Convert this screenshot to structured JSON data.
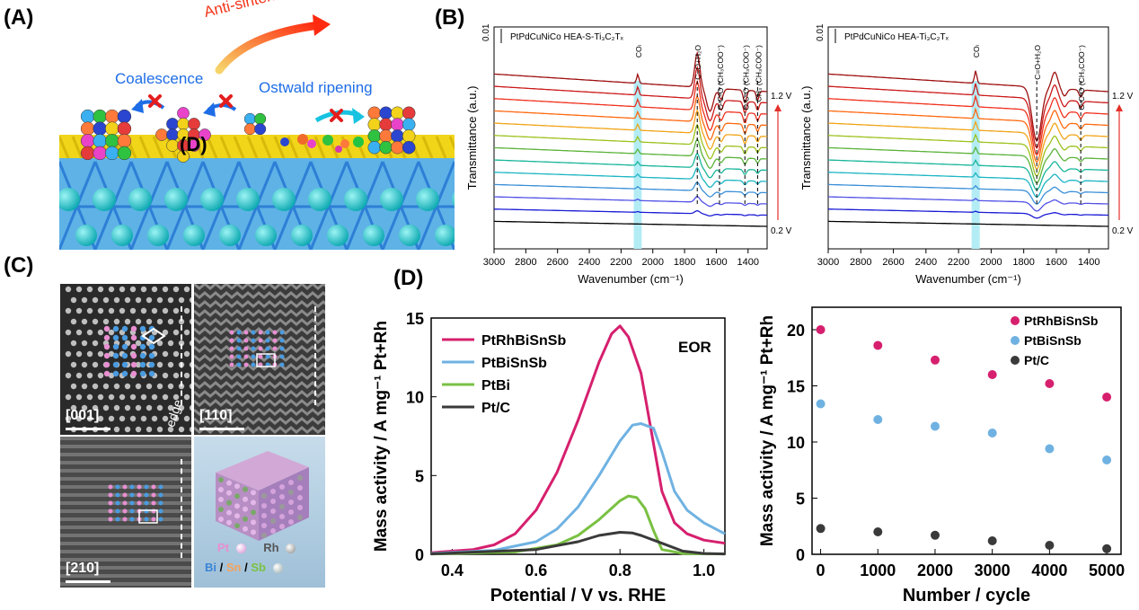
{
  "panels": {
    "a": "(A)",
    "b": "(B)",
    "c": "(C)",
    "d": "(D)"
  },
  "scene_a": {
    "arrow_title": "Anti-sintering",
    "left_label": "Coalescence",
    "right_label": "Ostwald ripening",
    "overlay": "(D)"
  },
  "micrographs": {
    "labels": [
      "[001]",
      "[110]",
      "[210]"
    ],
    "edge_label": "edge",
    "model_legend": {
      "pt": "Pt",
      "rh": "Rh",
      "bi": "Bi",
      "sn": "Sn",
      "sb": "Sb",
      "sep": "/"
    }
  },
  "colors": {
    "magenta": "#d6206e",
    "lightblue": "#6fb2e2",
    "green": "#7ac143",
    "darkgray": "#3a3a3a",
    "highlight": "#b3ecf5"
  },
  "chart_data": [
    {
      "type": "line",
      "panel": "B-left",
      "title": "PtPdCuNiCo HEA-S-Ti₃C₂Tₓ",
      "xlabel": "Wavenumber (cm⁻¹)",
      "ylabel": "Transmittance (a.u.)",
      "xlim": [
        3000,
        1280
      ],
      "x_ticks": [
        3000,
        2800,
        2600,
        2400,
        2200,
        2000,
        1800,
        1600,
        1400
      ],
      "scale_label": "0.01",
      "potential_top": "1.2 V",
      "potential_bottom": "0.2 V",
      "highlight_band": [
        2120,
        2070
      ],
      "band_labels": [
        {
          "x": 2095,
          "label": "COₗ"
        },
        {
          "x": 1720,
          "label": "C=O+H₂O"
        },
        {
          "x": 1580,
          "label": "O-C-O (CH₃COO⁻)"
        },
        {
          "x": 1420,
          "label": "O-C-O (CH₃COO⁻)"
        },
        {
          "x": 1340,
          "label": "CH₃ (CH₃COO⁻)"
        }
      ],
      "series_colors": [
        "#000000",
        "#1b1bd6",
        "#5151e6",
        "#3a8fd8",
        "#1cb5c4",
        "#18b59a",
        "#5bb33a",
        "#9cc21e",
        "#f2a419",
        "#ff6a12",
        "#f0321e",
        "#cc1a1a",
        "#9e1010"
      ]
    },
    {
      "type": "line",
      "panel": "B-right",
      "title": "PtPdCuNiCo HEA-Ti₃C₂Tₓ",
      "xlabel": "Wavenumber (cm⁻¹)",
      "ylabel": "Transmittance (a.u.)",
      "xlim": [
        3000,
        1280
      ],
      "x_ticks": [
        3000,
        2800,
        2600,
        2400,
        2200,
        2000,
        1800,
        1600,
        1400
      ],
      "scale_label": "0.01",
      "potential_top": "1.2 V",
      "potential_bottom": "0.2 V",
      "highlight_band": [
        2120,
        2070
      ],
      "band_labels": [
        {
          "x": 2095,
          "label": "COₗ"
        },
        {
          "x": 1720,
          "label": "C=O+H₂O"
        },
        {
          "x": 1450,
          "label": "O-C-O (CH₃COO⁻)"
        }
      ],
      "series_colors": [
        "#000000",
        "#1b1bd6",
        "#5151e6",
        "#3a8fd8",
        "#1cb5c4",
        "#18b59a",
        "#5bb33a",
        "#9cc21e",
        "#f2a419",
        "#ff6a12",
        "#f0321e",
        "#cc1a1a",
        "#9e1010"
      ]
    },
    {
      "type": "line",
      "panel": "D-left",
      "xlabel": "Potential / V vs. RHE",
      "ylabel": "Mass activity / A mg⁻¹ Pt+Rh",
      "xlim": [
        0.35,
        1.05
      ],
      "ylim": [
        0,
        15
      ],
      "x_ticks": [
        0.4,
        0.6,
        0.8,
        1.0
      ],
      "y_ticks": [
        0,
        5,
        10,
        15
      ],
      "annotation": "EOR",
      "legend_position": "top-left",
      "series": [
        {
          "name": "PtRhBiSnSb",
          "color": "#d6206e",
          "x": [
            0.35,
            0.45,
            0.5,
            0.55,
            0.6,
            0.65,
            0.7,
            0.75,
            0.78,
            0.8,
            0.82,
            0.85,
            0.88,
            0.9,
            0.93,
            0.96,
            1.0,
            1.05
          ],
          "y": [
            0.1,
            0.3,
            0.6,
            1.3,
            2.8,
            5.2,
            8.5,
            12.2,
            14.0,
            14.5,
            13.8,
            11.5,
            7.0,
            4.0,
            2.0,
            1.3,
            0.9,
            0.7
          ]
        },
        {
          "name": "PtBiSnSb",
          "color": "#6fb2e2",
          "x": [
            0.35,
            0.5,
            0.6,
            0.65,
            0.7,
            0.75,
            0.8,
            0.83,
            0.85,
            0.88,
            0.9,
            0.93,
            0.96,
            1.0,
            1.05
          ],
          "y": [
            0.05,
            0.25,
            0.8,
            1.6,
            3.0,
            5.0,
            7.2,
            8.2,
            8.3,
            8.0,
            6.5,
            4.0,
            2.8,
            2.0,
            1.3
          ]
        },
        {
          "name": "PtBi",
          "color": "#7ac143",
          "x": [
            0.35,
            0.55,
            0.65,
            0.7,
            0.75,
            0.8,
            0.82,
            0.84,
            0.86,
            0.88,
            0.9,
            0.95,
            1.05
          ],
          "y": [
            0.02,
            0.15,
            0.6,
            1.2,
            2.2,
            3.4,
            3.7,
            3.6,
            2.9,
            1.5,
            0.3,
            0.05,
            0.02
          ]
        },
        {
          "name": "Pt/C",
          "color": "#3a3a3a",
          "x": [
            0.35,
            0.6,
            0.7,
            0.75,
            0.8,
            0.83,
            0.85,
            0.9,
            0.95,
            1.0,
            1.05
          ],
          "y": [
            0.02,
            0.3,
            0.8,
            1.2,
            1.4,
            1.35,
            1.2,
            0.7,
            0.2,
            0.05,
            0.02
          ]
        }
      ]
    },
    {
      "type": "scatter",
      "panel": "D-right",
      "xlabel": "Number / cycle",
      "ylabel": "Mass activity / A mg⁻¹ Pt+Rh",
      "xlim": [
        -150,
        5250
      ],
      "ylim": [
        0,
        22
      ],
      "x_ticks": [
        0,
        1000,
        2000,
        3000,
        4000,
        5000
      ],
      "y_ticks": [
        0,
        5,
        10,
        15,
        20
      ],
      "legend_position": "top-right",
      "series": [
        {
          "name": "PtRhBiSnSb",
          "color": "#d6206e",
          "x": [
            0,
            1000,
            2000,
            3000,
            4000,
            5000
          ],
          "y": [
            20.0,
            18.6,
            17.3,
            16.0,
            15.2,
            14.0
          ]
        },
        {
          "name": "PtBiSnSb",
          "color": "#6fb2e2",
          "x": [
            0,
            1000,
            2000,
            3000,
            4000,
            5000
          ],
          "y": [
            13.4,
            12.0,
            11.4,
            10.8,
            9.4,
            8.4
          ]
        },
        {
          "name": "Pt/C",
          "color": "#3a3a3a",
          "x": [
            0,
            1000,
            2000,
            3000,
            4000,
            5000
          ],
          "y": [
            2.3,
            2.0,
            1.7,
            1.2,
            0.8,
            0.5
          ]
        }
      ]
    }
  ]
}
